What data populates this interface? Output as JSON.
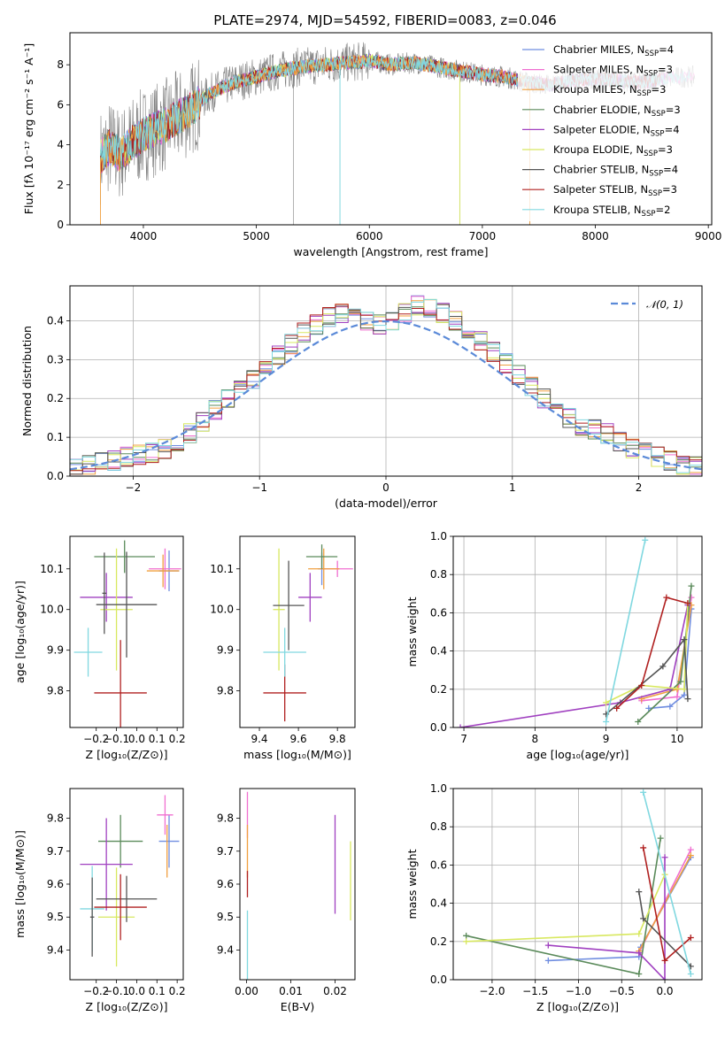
{
  "title": "PLATE=2974, MJD=54592, FIBERID=0083, z=0.046",
  "colors": {
    "series": [
      "#6f8de0",
      "#f06fd0",
      "#f0a040",
      "#5a8a5a",
      "#a040c0",
      "#d8e860",
      "#555555",
      "#b02020",
      "#80d8e0"
    ],
    "gauss": "#5b8ad8"
  },
  "legend": [
    {
      "name": "Chabrier MILES",
      "nssp": "4"
    },
    {
      "name": "Salpeter MILES",
      "nssp": "3"
    },
    {
      "name": "Kroupa MILES",
      "nssp": "3"
    },
    {
      "name": "Chabrier ELODIE",
      "nssp": "3"
    },
    {
      "name": "Salpeter ELODIE",
      "nssp": "4"
    },
    {
      "name": "Kroupa ELODIE",
      "nssp": "3"
    },
    {
      "name": "Chabrier STELIB",
      "nssp": "4"
    },
    {
      "name": "Salpeter STELIB",
      "nssp": "3"
    },
    {
      "name": "Kroupa STELIB",
      "nssp": "2"
    }
  ],
  "chart_data": [
    {
      "id": "spectrum",
      "type": "line",
      "xlabel": "wavelength [Angstrom, rest frame]",
      "ylabel": "Flux [fλ 10⁻¹⁷ erg cm⁻² s⁻¹ A⁻¹]",
      "xlim": [
        3350,
        9030
      ],
      "ylim": [
        0,
        9.6
      ],
      "xticks": [
        4000,
        5000,
        6000,
        7000,
        8000,
        9000
      ],
      "yticks": [
        0,
        2,
        4,
        6,
        8
      ],
      "continuum": [
        [
          3620,
          3.4
        ],
        [
          3700,
          3.9
        ],
        [
          3800,
          3.5
        ],
        [
          3900,
          4.1
        ],
        [
          4000,
          4.5
        ],
        [
          4200,
          5.0
        ],
        [
          4400,
          5.7
        ],
        [
          4600,
          6.6
        ],
        [
          4800,
          7.1
        ],
        [
          5000,
          7.4
        ],
        [
          5200,
          7.7
        ],
        [
          5400,
          7.9
        ],
        [
          5600,
          8.0
        ],
        [
          5800,
          8.1
        ],
        [
          6000,
          8.2
        ],
        [
          6200,
          8.0
        ],
        [
          6400,
          8.1
        ],
        [
          6600,
          7.9
        ],
        [
          6800,
          7.7
        ],
        [
          7000,
          7.5
        ],
        [
          7200,
          7.4
        ],
        [
          7400,
          7.1
        ],
        [
          7600,
          7.0
        ],
        [
          7800,
          7.2
        ],
        [
          8000,
          7.3
        ],
        [
          8200,
          7.2
        ],
        [
          8400,
          7.1
        ],
        [
          8600,
          7.3
        ],
        [
          8800,
          7.4
        ]
      ],
      "data_range": [
        3620,
        8880
      ],
      "model_ends": [
        8580,
        8880,
        7420,
        8580,
        8620,
        6800,
        8580,
        8580,
        8850
      ],
      "dropouts": [
        {
          "x": 5330,
          "y": 0
        },
        {
          "x": 5740,
          "y": 0
        },
        {
          "x": 6800,
          "y": 0
        },
        {
          "x": 7420,
          "y": 0
        }
      ]
    },
    {
      "id": "residual-histogram",
      "type": "line",
      "xlabel": "(data-model)/error",
      "ylabel": "Normed distribution",
      "xlim": [
        -2.5,
        2.5
      ],
      "ylim": [
        0,
        0.49
      ],
      "xticks": [
        -2,
        -1,
        0,
        1,
        2
      ],
      "yticks": [
        0.0,
        0.1,
        0.2,
        0.3,
        0.4
      ],
      "gauss_label": "𝒩(0, 1)",
      "bin_edges": [
        -2.5,
        -2.4,
        -2.3,
        -2.2,
        -2.1,
        -2.0,
        -1.9,
        -1.8,
        -1.7,
        -1.6,
        -1.5,
        -1.4,
        -1.3,
        -1.2,
        -1.1,
        -1.0,
        -0.9,
        -0.8,
        -0.7,
        -0.6,
        -0.5,
        -0.4,
        -0.3,
        -0.2,
        -0.1,
        0.0,
        0.1,
        0.2,
        0.3,
        0.4,
        0.5,
        0.6,
        0.7,
        0.8,
        0.9,
        1.0,
        1.1,
        1.2,
        1.3,
        1.4,
        1.5,
        1.6,
        1.7,
        1.8,
        1.9,
        2.0,
        2.1,
        2.2,
        2.3,
        2.4,
        2.5
      ],
      "hist_base": [
        0.02,
        0.03,
        0.035,
        0.04,
        0.05,
        0.055,
        0.06,
        0.07,
        0.09,
        0.11,
        0.14,
        0.17,
        0.2,
        0.22,
        0.25,
        0.28,
        0.31,
        0.34,
        0.37,
        0.39,
        0.41,
        0.42,
        0.41,
        0.4,
        0.39,
        0.4,
        0.42,
        0.44,
        0.43,
        0.42,
        0.4,
        0.38,
        0.35,
        0.32,
        0.29,
        0.26,
        0.23,
        0.2,
        0.18,
        0.15,
        0.13,
        0.12,
        0.11,
        0.09,
        0.07,
        0.06,
        0.05,
        0.04,
        0.03,
        0.025
      ]
    },
    {
      "id": "age-vs-Z",
      "type": "scatter",
      "xlabel": "Z [log₁₀(Z/Z⊙)]",
      "ylabel": "age  [log₁₀(age/yr)]",
      "xlim": [
        -0.33,
        0.23
      ],
      "ylim": [
        9.71,
        10.18
      ],
      "xticks": [
        -0.2,
        -0.1,
        0.0,
        0.1,
        0.2
      ],
      "yticks": [
        9.8,
        9.9,
        10.0,
        10.1
      ],
      "points": [
        {
          "s": 0,
          "x": 0.16,
          "y": 10.095,
          "xe": 0.05,
          "ye": 0.05
        },
        {
          "s": 1,
          "x": 0.14,
          "y": 10.1,
          "xe": 0.08,
          "ye": 0.05
        },
        {
          "s": 2,
          "x": 0.13,
          "y": 10.095,
          "xe": 0.08,
          "ye": 0.04
        },
        {
          "s": 3,
          "x": -0.06,
          "y": 10.13,
          "xe": 0.15,
          "ye": 0.04
        },
        {
          "s": 4,
          "x": -0.15,
          "y": 10.03,
          "xe": 0.13,
          "ye": 0.06
        },
        {
          "s": 5,
          "x": -0.1,
          "y": 10.0,
          "xe": 0.08,
          "ye": 0.15
        },
        {
          "s": 6,
          "x": -0.05,
          "y": 10.012,
          "xe": 0.15,
          "ye": 0.13
        },
        {
          "s": 7,
          "x": -0.08,
          "y": 9.795,
          "xe": 0.13,
          "ye": 0.13
        },
        {
          "s": 8,
          "x": -0.24,
          "y": 9.895,
          "xe": 0.07,
          "ye": 0.06
        },
        {
          "s": 6,
          "x": -0.16,
          "y": 10.04,
          "xe": 0.01,
          "ye": 0.1
        }
      ]
    },
    {
      "id": "age-vs-mass",
      "type": "scatter",
      "xlabel": "mass [log₁₀(M/M⊙)]",
      "ylabel": "",
      "xlim": [
        9.3,
        9.89
      ],
      "ylim": [
        9.71,
        10.18
      ],
      "xticks": [
        9.4,
        9.6,
        9.8
      ],
      "yticks": [
        9.8,
        9.9,
        10.0,
        10.1
      ],
      "points": [
        {
          "s": 0,
          "x": 9.72,
          "y": 10.1,
          "xe": 0.02,
          "ye": 0.04
        },
        {
          "s": 1,
          "x": 9.8,
          "y": 10.1,
          "xe": 0.08,
          "ye": 0.02
        },
        {
          "s": 2,
          "x": 9.73,
          "y": 10.1,
          "xe": 0.08,
          "ye": 0.05
        },
        {
          "s": 3,
          "x": 9.72,
          "y": 10.13,
          "xe": 0.08,
          "ye": 0.03
        },
        {
          "s": 4,
          "x": 9.66,
          "y": 10.03,
          "xe": 0.06,
          "ye": 0.06
        },
        {
          "s": 5,
          "x": 9.5,
          "y": 10.0,
          "xe": 0.03,
          "ye": 0.15
        },
        {
          "s": 6,
          "x": 9.55,
          "y": 10.01,
          "xe": 0.08,
          "ye": 0.11
        },
        {
          "s": 7,
          "x": 9.53,
          "y": 9.795,
          "xe": 0.11,
          "ye": 0.07
        },
        {
          "s": 8,
          "x": 9.53,
          "y": 9.895,
          "xe": 0.11,
          "ye": 0.06
        }
      ]
    },
    {
      "id": "mass-weight-vs-age",
      "type": "line",
      "xlabel": "age  [log₁₀(age/yr)]",
      "ylabel": "mass weight",
      "xlim": [
        6.85,
        10.35
      ],
      "ylim": [
        0,
        1.0
      ],
      "xticks": [
        7,
        8,
        9,
        10
      ],
      "yticks": [
        0.0,
        0.2,
        0.4,
        0.6,
        0.8,
        1.0
      ],
      "series": [
        {
          "s": 0,
          "x": [
            9.6,
            9.9,
            10.1,
            10.2
          ],
          "y": [
            0.1,
            0.11,
            0.17,
            0.62
          ]
        },
        {
          "s": 1,
          "x": [
            9.5,
            10.0,
            10.2
          ],
          "y": [
            0.14,
            0.16,
            0.68
          ]
        },
        {
          "s": 2,
          "x": [
            9.5,
            10.0,
            10.2
          ],
          "y": [
            0.15,
            0.2,
            0.64
          ]
        },
        {
          "s": 3,
          "x": [
            9.45,
            10.05,
            10.2
          ],
          "y": [
            0.03,
            0.24,
            0.74
          ]
        },
        {
          "s": 4,
          "x": [
            6.95,
            9.2,
            9.9,
            10.15
          ],
          "y": [
            0.0,
            0.13,
            0.2,
            0.64
          ]
        },
        {
          "s": 5,
          "x": [
            9.0,
            9.5,
            10.1,
            10.15
          ],
          "y": [
            0.13,
            0.22,
            0.2,
            0.65
          ]
        },
        {
          "s": 6,
          "x": [
            9.0,
            9.8,
            10.1,
            10.15
          ],
          "y": [
            0.07,
            0.32,
            0.46,
            0.15
          ]
        },
        {
          "s": 7,
          "x": [
            9.15,
            9.5,
            9.85,
            10.15
          ],
          "y": [
            0.1,
            0.22,
            0.68,
            0.65
          ]
        },
        {
          "s": 8,
          "x": [
            9.0,
            9.55
          ],
          "y": [
            0.03,
            0.98
          ]
        }
      ]
    },
    {
      "id": "mass-vs-Z",
      "type": "scatter",
      "xlabel": "Z [log₁₀(Z/Z⊙)]",
      "ylabel": "mass [log₁₀(M/M⊙)]",
      "xlim": [
        -0.33,
        0.23
      ],
      "ylim": [
        9.31,
        9.89
      ],
      "xticks": [
        -0.2,
        -0.1,
        0.0,
        0.1,
        0.2
      ],
      "yticks": [
        9.4,
        9.5,
        9.6,
        9.7,
        9.8
      ],
      "points": [
        {
          "s": 0,
          "x": 0.16,
          "y": 9.73,
          "xe": 0.05,
          "ye": 0.08
        },
        {
          "s": 1,
          "x": 0.14,
          "y": 9.81,
          "xe": 0.04,
          "ye": 0.06
        },
        {
          "s": 2,
          "x": 0.15,
          "y": 9.7,
          "xe": 0.0,
          "ye": 0.08
        },
        {
          "s": 3,
          "x": -0.08,
          "y": 9.73,
          "xe": 0.11,
          "ye": 0.08
        },
        {
          "s": 4,
          "x": -0.15,
          "y": 9.66,
          "xe": 0.13,
          "ye": 0.14
        },
        {
          "s": 5,
          "x": -0.1,
          "y": 9.5,
          "xe": 0.09,
          "ye": 0.15
        },
        {
          "s": 6,
          "x": -0.05,
          "y": 9.555,
          "xe": 0.15,
          "ye": 0.07
        },
        {
          "s": 7,
          "x": -0.08,
          "y": 9.53,
          "xe": 0.13,
          "ye": 0.1
        },
        {
          "s": 8,
          "x": -0.22,
          "y": 9.525,
          "xe": 0.06,
          "ye": 0.13
        },
        {
          "s": 6,
          "x": -0.22,
          "y": 9.5,
          "xe": 0.01,
          "ye": 0.12
        }
      ]
    },
    {
      "id": "mass-vs-EBV",
      "type": "scatter",
      "xlabel": "E(B-V)",
      "ylabel": "",
      "xlim": [
        -0.0015,
        0.0245
      ],
      "ylim": [
        9.31,
        9.89
      ],
      "xticks": [
        0.0,
        0.01,
        0.02
      ],
      "yticks": [
        9.4,
        9.5,
        9.6,
        9.7,
        9.8
      ],
      "points": [
        {
          "s": 1,
          "x": 0.0002,
          "y": 9.81,
          "ye": 0.07
        },
        {
          "s": 2,
          "x": 0.0002,
          "y": 9.7,
          "ye": 0.08
        },
        {
          "s": 7,
          "x": 0.0002,
          "y": 9.6,
          "ye": 0.04
        },
        {
          "s": 8,
          "x": 0.0002,
          "y": 9.4,
          "ye": 0.12
        },
        {
          "s": 4,
          "x": 0.02,
          "y": 9.66,
          "ye": 0.15
        },
        {
          "s": 5,
          "x": 0.0235,
          "y": 9.61,
          "ye": 0.12
        }
      ]
    },
    {
      "id": "mass-weight-vs-Z",
      "type": "line",
      "xlabel": "Z [log₁₀(Z/Z⊙)]",
      "ylabel": "mass weight",
      "xlim": [
        -2.45,
        0.43
      ],
      "ylim": [
        0,
        1.0
      ],
      "xticks": [
        -2.0,
        -1.5,
        -1.0,
        -0.5,
        0.0
      ],
      "yticks": [
        0.0,
        0.2,
        0.4,
        0.6,
        0.8,
        1.0
      ],
      "series": [
        {
          "s": 0,
          "x": [
            -1.35,
            -0.3,
            -0.28,
            0.3
          ],
          "y": [
            0.1,
            0.12,
            0.17,
            0.64
          ]
        },
        {
          "s": 1,
          "x": [
            -0.3,
            0.3
          ],
          "y": [
            0.14,
            0.68
          ]
        },
        {
          "s": 2,
          "x": [
            -0.3,
            0.3
          ],
          "y": [
            0.15,
            0.65
          ]
        },
        {
          "s": 3,
          "x": [
            -2.3,
            -0.3,
            -0.05
          ],
          "y": [
            0.23,
            0.03,
            0.74
          ]
        },
        {
          "s": 4,
          "x": [
            -1.35,
            -0.3,
            0.0,
            0.0
          ],
          "y": [
            0.18,
            0.14,
            0.0,
            0.64
          ]
        },
        {
          "s": 5,
          "x": [
            -2.3,
            -0.3,
            0.0
          ],
          "y": [
            0.2,
            0.24,
            0.55
          ]
        },
        {
          "s": 6,
          "x": [
            -0.3,
            -0.25,
            0.3
          ],
          "y": [
            0.46,
            0.32,
            0.07
          ]
        },
        {
          "s": 7,
          "x": [
            -0.25,
            0.0,
            0.3
          ],
          "y": [
            0.69,
            0.1,
            0.22
          ]
        },
        {
          "s": 8,
          "x": [
            -0.25,
            0.3
          ],
          "y": [
            0.98,
            0.03
          ]
        }
      ]
    }
  ]
}
